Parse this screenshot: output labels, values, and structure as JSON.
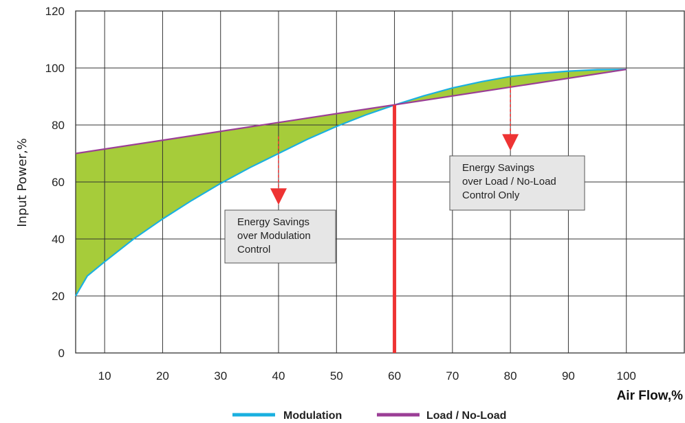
{
  "chart_data": {
    "type": "area",
    "ylabel": "Input Power,%",
    "xlabel": "Air Flow,%",
    "xlim": [
      5,
      110
    ],
    "ylim": [
      0,
      120
    ],
    "x_ticks": [
      10,
      20,
      30,
      40,
      50,
      60,
      70,
      80,
      90,
      100
    ],
    "y_ticks": [
      0,
      20,
      40,
      60,
      80,
      100,
      120
    ],
    "grid": true,
    "legend_position": "bottom-center",
    "series": [
      {
        "name": "Modulation",
        "color": "#1ab0e0",
        "x": [
          5,
          7,
          10,
          15,
          20,
          25,
          30,
          35,
          40,
          45,
          50,
          55,
          60,
          65,
          70,
          75,
          80,
          85,
          90,
          95,
          100
        ],
        "y": [
          20,
          27,
          32,
          40,
          47,
          53.5,
          59.5,
          65,
          70,
          75,
          79.5,
          83.5,
          87,
          90.2,
          93,
          95.2,
          97,
          98.1,
          98.9,
          99.4,
          99.5
        ]
      },
      {
        "name": "Load / No-Load",
        "color": "#9b3e96",
        "x": [
          5,
          100
        ],
        "y": [
          70,
          99.5
        ]
      }
    ],
    "vertical_line": {
      "x": 60,
      "y_top": 87,
      "color": "#ee3333"
    },
    "fill_color": "#a6cc3a",
    "annotations": [
      {
        "lines": [
          "Energy Savings",
          "over Modulation",
          "Control"
        ],
        "arrow_x": 40,
        "arrow_y_from": 76,
        "arrow_y_to": 52
      },
      {
        "lines": [
          "Energy Savings",
          "over Load / No-Load",
          "Control Only"
        ],
        "arrow_x": 80,
        "arrow_y_from": 94,
        "arrow_y_to": 71
      }
    ]
  }
}
